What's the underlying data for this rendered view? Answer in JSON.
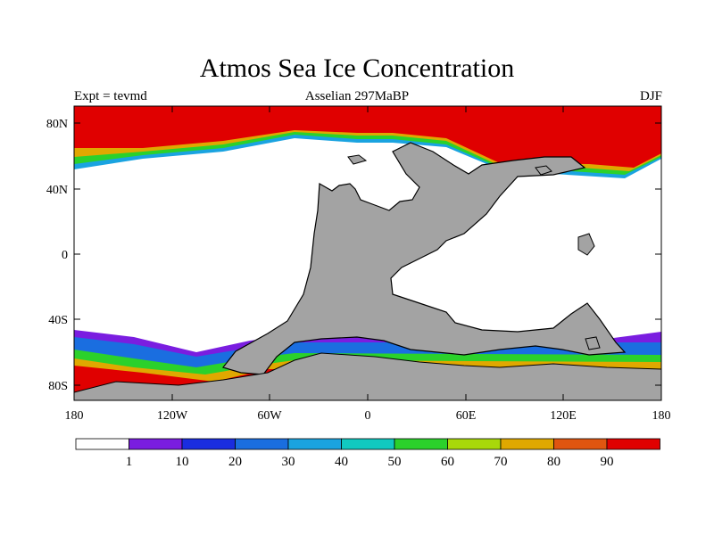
{
  "title": "Atmos Sea Ice Concentration",
  "subtitle_left": "Expt = tevmd",
  "subtitle_center": "Asselian 297MaBP",
  "subtitle_right": "DJF",
  "lat_labels": [
    "80N",
    "40N",
    "0",
    "40S",
    "80S"
  ],
  "lon_labels": [
    "180",
    "120W",
    "60W",
    "0",
    "60E",
    "120E",
    "180"
  ],
  "legend": {
    "labels": [
      "1",
      "10",
      "20",
      "30",
      "40",
      "50",
      "60",
      "70",
      "80",
      "90"
    ],
    "colors": [
      "#ffffff",
      "#7a1de0",
      "#1a2de0",
      "#1a6ee0",
      "#1aa3e0",
      "#11c9c0",
      "#2bd12b",
      "#a8d80a",
      "#e0a800",
      "#e05510",
      "#e00000"
    ]
  },
  "colors": {
    "land": "#a3a3a3",
    "ice_full": "#e00000",
    "open_ocean": "#ffffff"
  }
}
